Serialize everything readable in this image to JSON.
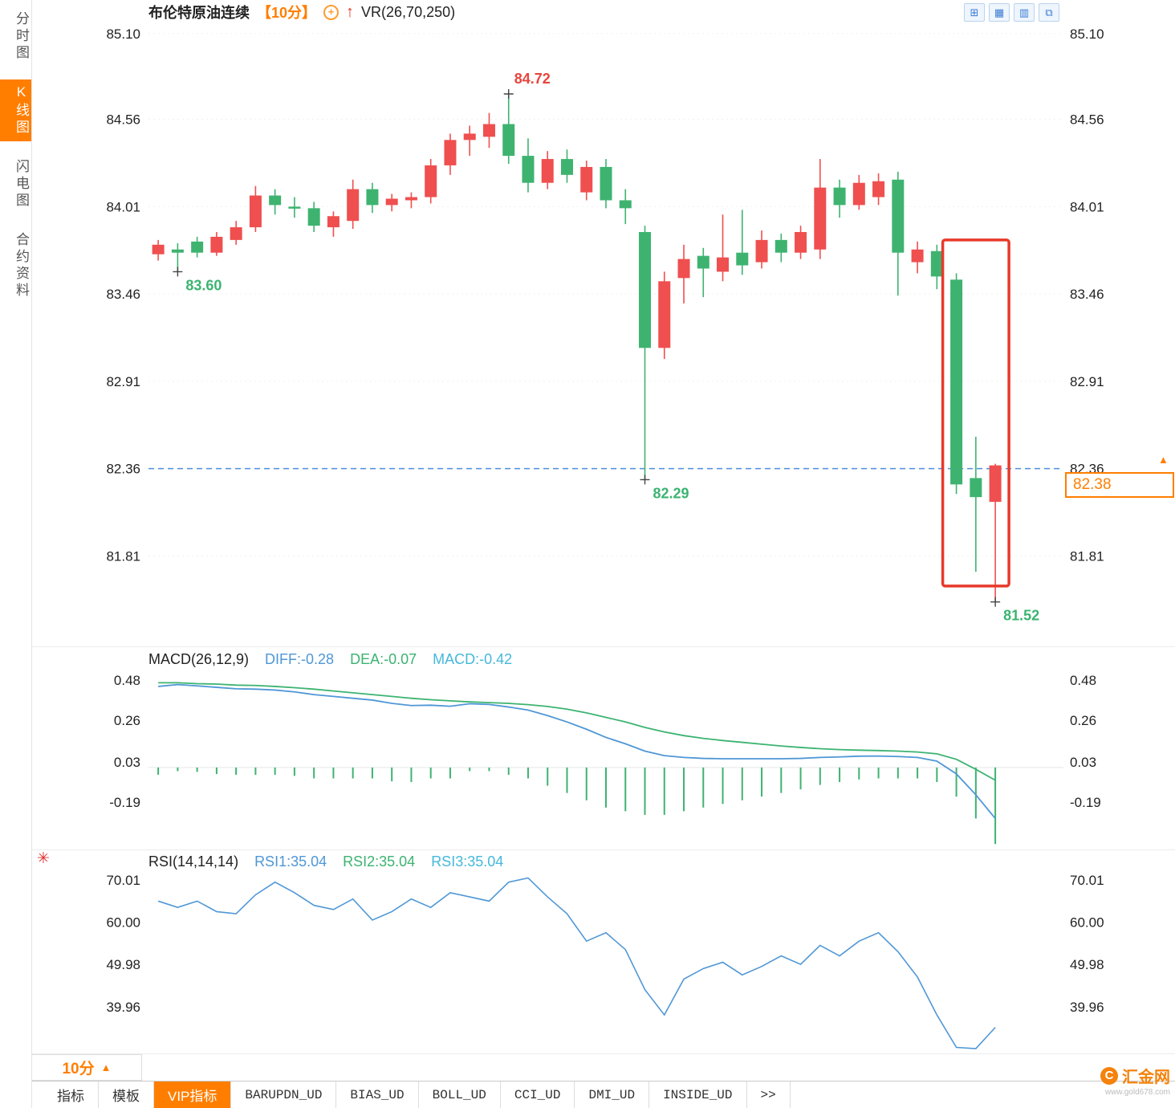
{
  "colors": {
    "up": "#ef4f4f",
    "down": "#3eb370",
    "accent_orange": "#ff7e00",
    "blue_line": "#4f97d6",
    "green_line": "#3cb371",
    "cyan": "#45b8dc",
    "highlight_red": "#e8392a",
    "dashed_blue": "#4f8fdd"
  },
  "sidebar": {
    "tabs": [
      {
        "label": "分时图",
        "active": false
      },
      {
        "label": "K线图",
        "active": true
      },
      {
        "label": "闪电图",
        "active": false
      },
      {
        "label": "合约资料",
        "active": false
      }
    ]
  },
  "header": {
    "title": "布伦特原油连续",
    "period": "【10分】",
    "indicator": "VR(26,70,250)"
  },
  "toolbar": {
    "icons": [
      {
        "name": "grid-layout-icon",
        "glyph": "⊞"
      },
      {
        "name": "multi-chart-icon",
        "glyph": "▦"
      },
      {
        "name": "bar-chart-icon",
        "glyph": "▥"
      },
      {
        "name": "new-window-icon",
        "glyph": "⧉"
      }
    ]
  },
  "price_badge": {
    "value": "82.38",
    "arrow": "▲"
  },
  "period_box": {
    "label": "10分",
    "arrow": "▲"
  },
  "bottom_tabs": {
    "items": [
      {
        "label": "指标"
      },
      {
        "label": "模板"
      },
      {
        "label": "VIP指标",
        "active": true
      },
      {
        "label": "BARUPDN_UD"
      },
      {
        "label": "BIAS_UD"
      },
      {
        "label": "BOLL_UD"
      },
      {
        "label": "CCI_UD"
      },
      {
        "label": "DMI_UD"
      },
      {
        "label": "INSIDE_UD"
      },
      {
        "label": ">>"
      }
    ]
  },
  "watermark": {
    "brand": "汇金网",
    "url": "www.gold678.com"
  },
  "chart_data": [
    {
      "type": "candlestick",
      "title": "布伦特原油连续",
      "interval": "10分",
      "y_ticks": [
        85.1,
        84.56,
        84.01,
        83.46,
        82.91,
        82.36,
        81.81
      ],
      "ylim": [
        81.24,
        85.16
      ],
      "x_slots": 47,
      "dashed_line_price": 82.36,
      "current_price": 82.38,
      "highlight_box": {
        "from_index": 41,
        "to_index": 43,
        "top_price": 83.8,
        "bottom_price": 81.62
      },
      "annotations": [
        {
          "index": 18,
          "price": 84.72,
          "text": "84.72",
          "color": "#e8453c",
          "position": "above"
        },
        {
          "index": 1,
          "price": 83.6,
          "text": "83.60",
          "color": "#3cb371",
          "position": "below"
        },
        {
          "index": 25,
          "price": 82.29,
          "text": "82.29",
          "color": "#3cb371",
          "position": "below"
        },
        {
          "index": 43,
          "price": 81.52,
          "text": "81.52",
          "color": "#3cb371",
          "position": "below"
        }
      ],
      "candles": [
        [
          83.71,
          83.8,
          83.67,
          83.77
        ],
        [
          83.74,
          83.78,
          83.6,
          83.72
        ],
        [
          83.79,
          83.82,
          83.69,
          83.72
        ],
        [
          83.72,
          83.85,
          83.7,
          83.82
        ],
        [
          83.8,
          83.92,
          83.77,
          83.88
        ],
        [
          83.88,
          84.14,
          83.85,
          84.08
        ],
        [
          84.08,
          84.12,
          83.96,
          84.02
        ],
        [
          84.01,
          84.07,
          83.94,
          84.0
        ],
        [
          84.0,
          84.04,
          83.85,
          83.89
        ],
        [
          83.88,
          83.98,
          83.82,
          83.95
        ],
        [
          83.92,
          84.18,
          83.87,
          84.12
        ],
        [
          84.12,
          84.16,
          83.97,
          84.02
        ],
        [
          84.02,
          84.09,
          83.98,
          84.06
        ],
        [
          84.05,
          84.1,
          84.0,
          84.07
        ],
        [
          84.07,
          84.31,
          84.03,
          84.27
        ],
        [
          84.27,
          84.47,
          84.21,
          84.43
        ],
        [
          84.43,
          84.52,
          84.33,
          84.47
        ],
        [
          84.45,
          84.6,
          84.38,
          84.53
        ],
        [
          84.53,
          84.72,
          84.28,
          84.33
        ],
        [
          84.33,
          84.44,
          84.1,
          84.16
        ],
        [
          84.16,
          84.36,
          84.12,
          84.31
        ],
        [
          84.31,
          84.37,
          84.16,
          84.21
        ],
        [
          84.1,
          84.3,
          84.05,
          84.26
        ],
        [
          84.26,
          84.31,
          84.0,
          84.05
        ],
        [
          84.05,
          84.12,
          83.9,
          84.0
        ],
        [
          83.85,
          83.89,
          82.29,
          83.12
        ],
        [
          83.12,
          83.6,
          83.05,
          83.54
        ],
        [
          83.56,
          83.77,
          83.4,
          83.68
        ],
        [
          83.7,
          83.75,
          83.44,
          83.62
        ],
        [
          83.6,
          83.96,
          83.54,
          83.69
        ],
        [
          83.72,
          83.99,
          83.58,
          83.64
        ],
        [
          83.66,
          83.86,
          83.62,
          83.8
        ],
        [
          83.8,
          83.84,
          83.66,
          83.72
        ],
        [
          83.72,
          83.89,
          83.68,
          83.85
        ],
        [
          83.74,
          84.31,
          83.68,
          84.13
        ],
        [
          84.13,
          84.18,
          83.94,
          84.02
        ],
        [
          84.02,
          84.21,
          83.99,
          84.16
        ],
        [
          84.07,
          84.22,
          84.02,
          84.17
        ],
        [
          84.18,
          84.23,
          83.45,
          83.72
        ],
        [
          83.66,
          83.79,
          83.59,
          83.74
        ],
        [
          83.73,
          83.77,
          83.49,
          83.57
        ],
        [
          83.55,
          83.59,
          82.2,
          82.26
        ],
        [
          82.3,
          82.56,
          81.71,
          82.18
        ],
        [
          82.15,
          82.39,
          81.52,
          82.38
        ]
      ]
    },
    {
      "type": "macd",
      "label": "MACD(26,12,9)",
      "legend": [
        {
          "label": "DIFF:-0.28",
          "color": "#4f97d6"
        },
        {
          "label": "DEA:-0.07",
          "color": "#3cb371"
        },
        {
          "label": "MACD:-0.42",
          "color": "#45b8dc"
        }
      ],
      "y_ticks": [
        0.48,
        0.26,
        0.03,
        -0.19
      ],
      "ylim": [
        -0.45,
        0.665
      ],
      "diff": [
        0.445,
        0.455,
        0.448,
        0.44,
        0.432,
        0.43,
        0.425,
        0.415,
        0.4,
        0.39,
        0.38,
        0.37,
        0.352,
        0.34,
        0.342,
        0.336,
        0.35,
        0.346,
        0.332,
        0.315,
        0.285,
        0.25,
        0.21,
        0.165,
        0.13,
        0.09,
        0.065,
        0.055,
        0.05,
        0.048,
        0.048,
        0.048,
        0.048,
        0.05,
        0.055,
        0.058,
        0.062,
        0.063,
        0.06,
        0.055,
        0.035,
        -0.035,
        -0.15,
        -0.28
      ],
      "dea": [
        0.465,
        0.465,
        0.46,
        0.458,
        0.452,
        0.45,
        0.445,
        0.438,
        0.43,
        0.42,
        0.41,
        0.4,
        0.39,
        0.38,
        0.372,
        0.366,
        0.36,
        0.356,
        0.352,
        0.345,
        0.335,
        0.32,
        0.3,
        0.275,
        0.25,
        0.22,
        0.195,
        0.175,
        0.16,
        0.148,
        0.138,
        0.128,
        0.118,
        0.11,
        0.103,
        0.098,
        0.095,
        0.093,
        0.09,
        0.085,
        0.075,
        0.045,
        -0.01,
        -0.07
      ],
      "hist": [
        -0.04,
        -0.02,
        -0.024,
        -0.036,
        -0.04,
        -0.04,
        -0.04,
        -0.046,
        -0.06,
        -0.06,
        -0.06,
        -0.06,
        -0.076,
        -0.08,
        -0.06,
        -0.06,
        -0.02,
        -0.02,
        -0.04,
        -0.06,
        -0.1,
        -0.14,
        -0.18,
        -0.22,
        -0.24,
        -0.26,
        -0.26,
        -0.24,
        -0.22,
        -0.2,
        -0.18,
        -0.16,
        -0.14,
        -0.12,
        -0.096,
        -0.08,
        -0.066,
        -0.06,
        -0.06,
        -0.06,
        -0.08,
        -0.16,
        -0.28,
        -0.42
      ]
    },
    {
      "type": "line",
      "label": "RSI(14,14,14)",
      "legend": [
        {
          "label": "RSI1:35.04",
          "color": "#4f97d6"
        },
        {
          "label": "RSI2:35.04",
          "color": "#3cb371"
        },
        {
          "label": "RSI3:35.04",
          "color": "#45b8dc"
        }
      ],
      "y_ticks": [
        70.01,
        60.0,
        49.98,
        39.96
      ],
      "ylim": [
        29.25,
        76.87
      ],
      "series": [
        {
          "name": "RSI1",
          "color": "#4f97d6",
          "values": [
            65,
            63.5,
            65,
            62.5,
            62,
            66.5,
            69.5,
            67,
            64,
            63,
            65.5,
            60.5,
            62.5,
            65.5,
            63.5,
            67,
            66,
            65,
            69.5,
            70.5,
            66,
            62,
            55.5,
            57.5,
            53.5,
            44,
            38,
            46.5,
            49,
            50.5,
            47.5,
            49.5,
            52,
            50,
            54.5,
            52,
            55.5,
            57.5,
            53,
            47,
            38,
            30.3,
            30,
            35.04
          ]
        }
      ]
    }
  ]
}
